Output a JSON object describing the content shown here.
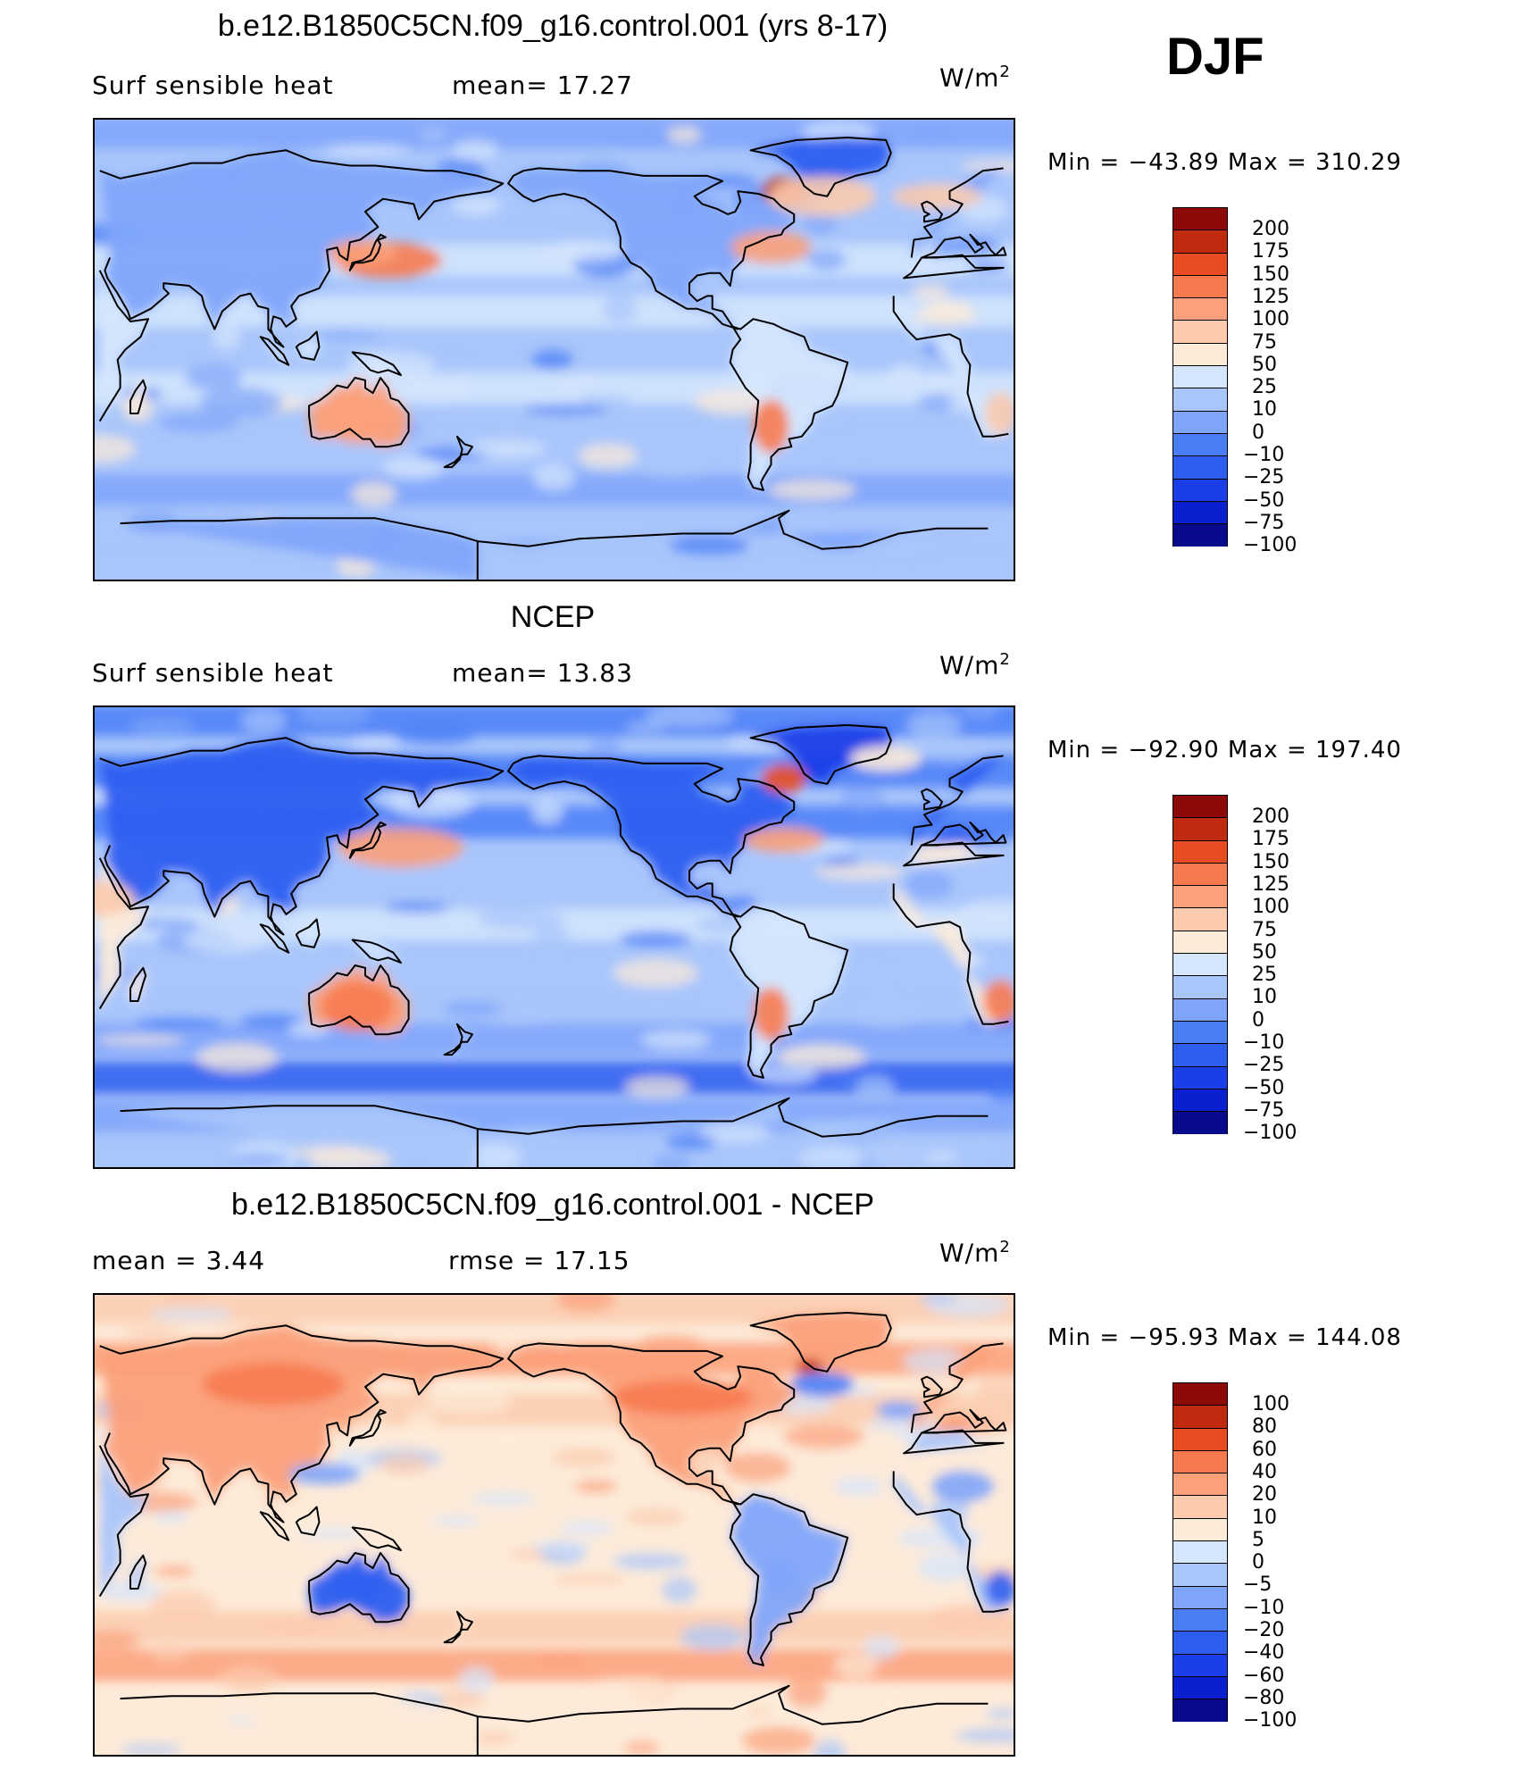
{
  "season": "DJF",
  "palette": [
    "#0a0a8c",
    "#0a1fcf",
    "#1a3ee8",
    "#2d5ef0",
    "#4a7ef7",
    "#7fa5fa",
    "#a9c6fb",
    "#d5e6fd",
    "#fdebd9",
    "#fccbae",
    "#fba07a",
    "#f77a4f",
    "#e84c22",
    "#c02a0e",
    "#8c0b06"
  ],
  "panels": [
    {
      "title": "b.e12.B1850C5CN.f09_g16.control.001 (yrs 8-17)",
      "left_label": "Surf  sensible  heat",
      "center_label": "mean=   17.27",
      "units": "W/m",
      "units_sup": "2",
      "min_max": "Min  =  −43.89  Max  =  310.29",
      "levels": [
        "200",
        "175",
        "150",
        "125",
        "100",
        "75",
        "50",
        "25",
        "10",
        "0",
        "−10",
        "−25",
        "−50",
        "−75",
        "−100"
      ],
      "map_style": "model"
    },
    {
      "title": "NCEP",
      "left_label": "Surf  sensible  heat",
      "center_label": "mean=   13.83",
      "units": "W/m",
      "units_sup": "2",
      "min_max": "Min  =  −92.90  Max  =  197.40",
      "levels": [
        "200",
        "175",
        "150",
        "125",
        "100",
        "75",
        "50",
        "25",
        "10",
        "0",
        "−10",
        "−25",
        "−50",
        "−75",
        "−100"
      ],
      "map_style": "obs"
    },
    {
      "title": "b.e12.B1850C5CN.f09_g16.control.001 - NCEP",
      "left_label": "mean  =     3.44",
      "center_label": "rmse  =    17.15",
      "units": "W/m",
      "units_sup": "2",
      "min_max": "Min  =  −95.93  Max  =  144.08",
      "levels": [
        "100",
        "80",
        "60",
        "40",
        "20",
        "10",
        "5",
        "0",
        "−5",
        "−10",
        "−20",
        "−40",
        "−60",
        "−80",
        "−100"
      ],
      "map_style": "diff"
    }
  ]
}
